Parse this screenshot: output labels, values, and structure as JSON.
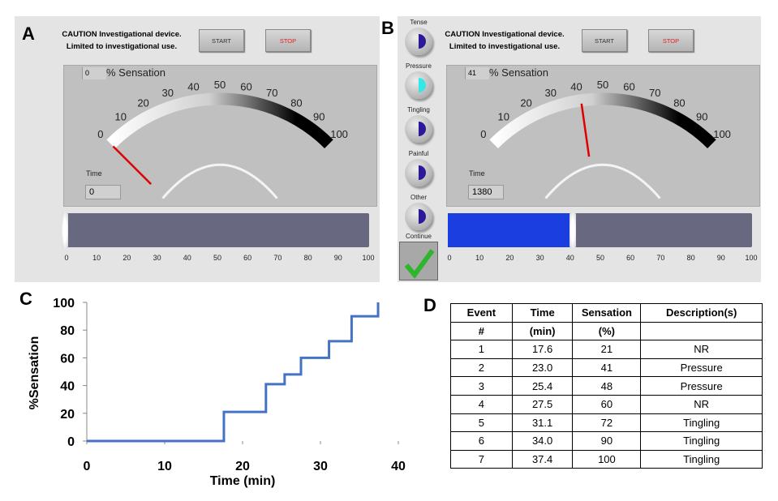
{
  "panels": {
    "a": "A",
    "b": "B",
    "c": "C",
    "d": "D"
  },
  "device": {
    "caution_line1": "CAUTION Investigational device.",
    "caution_line2": "Limited to investigational use.",
    "start_label": "START",
    "stop_label": "STOP",
    "sensation_label": "% Sensation",
    "time_label": "Time",
    "gauge_ticks": [
      "0",
      "10",
      "20",
      "30",
      "40",
      "50",
      "60",
      "70",
      "80",
      "90",
      "100"
    ],
    "slider_ticks": [
      "0",
      "10",
      "20",
      "30",
      "40",
      "50",
      "60",
      "70",
      "80",
      "90",
      "100"
    ]
  },
  "panel_a": {
    "sensation_value": "0",
    "time_value": "0",
    "slider_percent": 0
  },
  "panel_b": {
    "sensation_value": "41",
    "time_value": "1380",
    "slider_percent": 41,
    "indicators": [
      {
        "label": "Tense",
        "active": false
      },
      {
        "label": "Pressure",
        "active": true
      },
      {
        "label": "Tingling",
        "active": false
      },
      {
        "label": "Painful",
        "active": false
      },
      {
        "label": "Other",
        "active": false
      }
    ],
    "continue_label": "Continue",
    "colors": {
      "active": "#33e8e8",
      "inactive": "#2a1a9a",
      "fill": "#1a3ee0",
      "check": "#2db52d"
    }
  },
  "chart_data": {
    "type": "line",
    "xlabel": "Time (min)",
    "ylabel": "%Sensation",
    "xlim": [
      0,
      40
    ],
    "ylim": [
      0,
      100
    ],
    "xticks": [
      "0",
      "10",
      "20",
      "30",
      "40"
    ],
    "yticks": [
      "0",
      "20",
      "40",
      "60",
      "80",
      "100"
    ],
    "grid": false,
    "step": true,
    "color": "#4472c4",
    "x": [
      0,
      17.6,
      17.6,
      23.0,
      23.0,
      25.4,
      25.4,
      27.5,
      27.5,
      31.1,
      31.1,
      34.0,
      34.0,
      37.4,
      37.4
    ],
    "y": [
      0,
      0,
      21,
      21,
      41,
      41,
      48,
      48,
      60,
      60,
      72,
      72,
      90,
      90,
      100
    ]
  },
  "table": {
    "header1": [
      "Event",
      "Time",
      "Sensation",
      "Description(s)"
    ],
    "header2": [
      "#",
      "(min)",
      "(%)",
      ""
    ],
    "rows": [
      [
        "1",
        "17.6",
        "21",
        "NR"
      ],
      [
        "2",
        "23.0",
        "41",
        "Pressure"
      ],
      [
        "3",
        "25.4",
        "48",
        "Pressure"
      ],
      [
        "4",
        "27.5",
        "60",
        "NR"
      ],
      [
        "5",
        "31.1",
        "72",
        "Tingling"
      ],
      [
        "6",
        "34.0",
        "90",
        "Tingling"
      ],
      [
        "7",
        "37.4",
        "100",
        "Tingling"
      ]
    ]
  }
}
